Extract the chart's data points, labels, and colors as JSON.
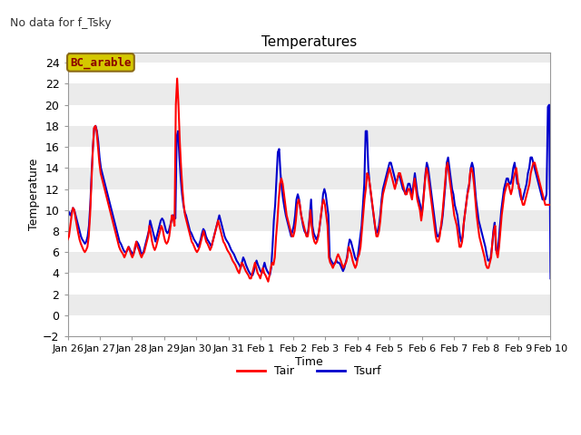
{
  "title": "Temperatures",
  "xlabel": "Time",
  "ylabel": "Temperature",
  "annotation": "No data for f_Tsky",
  "site_label": "BC_arable",
  "ylim": [
    -2,
    25
  ],
  "yticks": [
    -2,
    0,
    2,
    4,
    6,
    8,
    10,
    12,
    14,
    16,
    18,
    20,
    22,
    24
  ],
  "xtick_labels": [
    "Jan 26",
    "Jan 27",
    "Jan 28",
    "Jan 29",
    "Jan 30",
    "Jan 31",
    "Feb 1",
    "Feb 2",
    "Feb 3",
    "Feb 4",
    "Feb 5",
    "Feb 6",
    "Feb 7",
    "Feb 8",
    "Feb 9",
    "Feb 10"
  ],
  "plot_bg_light": "#ebebeb",
  "plot_bg_dark": "#ffffff",
  "tair_color": "#ff0000",
  "tsurf_color": "#0000cc",
  "tair": [
    7.2,
    7.5,
    8.5,
    9.5,
    10.2,
    10.0,
    9.2,
    8.5,
    7.8,
    7.2,
    6.8,
    6.5,
    6.2,
    6.0,
    6.2,
    6.5,
    7.5,
    9.5,
    12.5,
    15.5,
    17.8,
    18.0,
    17.5,
    16.0,
    14.5,
    13.5,
    13.0,
    12.5,
    12.0,
    11.5,
    11.0,
    10.5,
    10.0,
    9.5,
    9.0,
    8.5,
    8.0,
    7.5,
    7.0,
    6.5,
    6.2,
    6.0,
    5.8,
    5.5,
    5.8,
    6.2,
    6.5,
    6.2,
    5.8,
    5.5,
    5.8,
    6.5,
    7.0,
    6.5,
    6.2,
    5.8,
    5.5,
    5.8,
    6.0,
    6.5,
    7.0,
    7.5,
    8.5,
    7.8,
    7.0,
    6.5,
    6.2,
    6.5,
    7.0,
    7.5,
    8.0,
    8.5,
    8.2,
    7.5,
    7.0,
    6.8,
    7.0,
    7.5,
    8.5,
    9.5,
    9.2,
    8.5,
    20.0,
    22.5,
    20.0,
    16.5,
    14.0,
    12.0,
    10.5,
    9.5,
    9.0,
    8.5,
    8.0,
    7.5,
    7.0,
    6.8,
    6.5,
    6.2,
    6.0,
    6.2,
    6.5,
    7.0,
    7.5,
    8.0,
    7.5,
    7.0,
    6.8,
    6.5,
    6.2,
    6.5,
    7.0,
    7.5,
    8.0,
    8.5,
    9.0,
    8.5,
    8.0,
    7.5,
    7.0,
    6.8,
    6.5,
    6.2,
    6.0,
    5.8,
    5.5,
    5.2,
    5.0,
    4.8,
    4.5,
    4.2,
    4.0,
    4.5,
    5.0,
    4.8,
    4.5,
    4.2,
    4.0,
    3.8,
    3.5,
    3.5,
    4.0,
    4.5,
    5.0,
    4.5,
    4.0,
    3.8,
    3.5,
    4.0,
    4.5,
    4.0,
    3.8,
    3.5,
    3.2,
    3.8,
    4.5,
    5.0,
    4.8,
    5.5,
    7.5,
    9.0,
    11.0,
    12.5,
    13.0,
    12.5,
    11.5,
    10.5,
    9.5,
    9.0,
    8.5,
    8.0,
    7.5,
    7.5,
    8.0,
    9.0,
    10.5,
    11.0,
    10.5,
    9.5,
    9.0,
    8.5,
    8.0,
    7.5,
    7.5,
    8.5,
    10.0,
    8.5,
    7.5,
    7.0,
    6.8,
    7.0,
    7.5,
    8.5,
    9.5,
    10.5,
    11.0,
    10.5,
    9.5,
    8.5,
    5.5,
    5.0,
    4.8,
    4.5,
    4.8,
    5.0,
    5.5,
    5.8,
    5.5,
    5.2,
    4.8,
    4.5,
    4.8,
    5.0,
    5.5,
    6.5,
    6.2,
    5.8,
    5.2,
    4.8,
    4.5,
    4.8,
    5.5,
    5.8,
    6.5,
    8.0,
    9.5,
    11.0,
    12.0,
    13.5,
    13.2,
    12.5,
    11.5,
    10.5,
    9.5,
    8.5,
    7.5,
    7.5,
    8.0,
    9.0,
    10.5,
    11.5,
    12.0,
    12.5,
    13.0,
    13.5,
    14.0,
    13.5,
    13.0,
    12.5,
    12.0,
    12.5,
    13.0,
    13.5,
    13.5,
    13.0,
    12.5,
    12.0,
    11.5,
    11.5,
    12.0,
    12.0,
    11.5,
    11.0,
    12.0,
    13.0,
    12.0,
    11.0,
    10.5,
    10.0,
    9.0,
    10.0,
    11.5,
    13.0,
    14.0,
    13.5,
    12.5,
    11.5,
    10.5,
    9.5,
    8.5,
    7.5,
    7.0,
    7.0,
    7.5,
    8.5,
    9.5,
    11.0,
    12.5,
    14.0,
    14.5,
    13.5,
    12.5,
    11.5,
    10.5,
    9.5,
    9.0,
    8.5,
    7.5,
    6.5,
    6.5,
    7.0,
    8.5,
    9.5,
    10.5,
    11.5,
    12.0,
    13.5,
    14.0,
    13.5,
    12.5,
    11.0,
    9.5,
    8.5,
    7.5,
    7.0,
    6.5,
    6.0,
    5.5,
    4.8,
    4.5,
    4.5,
    5.0,
    5.5,
    7.0,
    8.0,
    8.5,
    6.0,
    5.5,
    6.5,
    8.0,
    9.5,
    10.5,
    11.5,
    12.0,
    12.5,
    12.5,
    12.0,
    11.5,
    12.0,
    13.0,
    13.5,
    14.0,
    13.0,
    12.0,
    12.0,
    11.0,
    10.5,
    10.5,
    11.0,
    11.5,
    12.0,
    12.5,
    13.5,
    14.0,
    14.5,
    14.5,
    14.0,
    13.5,
    13.0,
    12.5,
    12.0,
    11.5,
    11.0,
    10.5,
    10.5,
    10.5,
    10.5,
    10.5
  ],
  "tsurf": [
    10.0,
    9.8,
    9.5,
    9.8,
    10.2,
    10.0,
    9.5,
    9.0,
    8.5,
    8.0,
    7.5,
    7.2,
    7.0,
    6.8,
    7.0,
    7.5,
    8.5,
    10.5,
    13.5,
    16.0,
    17.8,
    18.0,
    17.5,
    16.5,
    15.0,
    14.0,
    13.5,
    13.0,
    12.5,
    12.0,
    11.5,
    11.0,
    10.5,
    10.0,
    9.5,
    9.0,
    8.5,
    8.0,
    7.5,
    7.0,
    6.8,
    6.5,
    6.2,
    6.0,
    6.0,
    6.2,
    6.5,
    6.2,
    6.0,
    5.8,
    6.0,
    6.5,
    7.0,
    6.8,
    6.5,
    6.0,
    5.8,
    6.0,
    6.5,
    7.0,
    7.5,
    8.0,
    9.0,
    8.5,
    8.0,
    7.5,
    7.0,
    7.5,
    8.0,
    8.5,
    9.0,
    9.2,
    9.0,
    8.5,
    8.0,
    7.8,
    8.0,
    8.5,
    9.0,
    9.5,
    9.5,
    9.2,
    17.0,
    17.5,
    15.0,
    13.0,
    11.5,
    10.5,
    9.8,
    9.5,
    9.0,
    8.5,
    8.0,
    7.8,
    7.5,
    7.2,
    7.0,
    6.8,
    6.5,
    6.8,
    7.2,
    7.8,
    8.2,
    8.0,
    7.5,
    7.2,
    7.0,
    6.8,
    6.5,
    7.0,
    7.5,
    8.0,
    8.5,
    9.0,
    9.5,
    9.0,
    8.5,
    8.0,
    7.5,
    7.2,
    7.0,
    6.8,
    6.5,
    6.2,
    6.0,
    5.8,
    5.5,
    5.2,
    5.0,
    4.8,
    4.5,
    5.0,
    5.5,
    5.2,
    4.8,
    4.5,
    4.2,
    4.0,
    3.8,
    3.8,
    4.2,
    4.8,
    5.2,
    4.8,
    4.5,
    4.2,
    4.0,
    4.5,
    5.0,
    4.5,
    4.2,
    4.0,
    3.8,
    4.5,
    6.5,
    9.0,
    10.5,
    13.0,
    15.5,
    15.8,
    13.5,
    12.0,
    11.0,
    10.2,
    9.5,
    9.0,
    8.5,
    8.0,
    7.5,
    8.0,
    8.5,
    9.5,
    11.0,
    11.5,
    11.0,
    10.0,
    9.2,
    8.5,
    8.0,
    7.8,
    7.5,
    8.2,
    9.5,
    11.0,
    8.5,
    7.8,
    7.5,
    7.2,
    7.5,
    8.0,
    9.0,
    10.0,
    11.5,
    12.0,
    11.5,
    10.5,
    9.5,
    5.5,
    5.2,
    5.0,
    4.8,
    5.0,
    5.2,
    5.0,
    5.0,
    4.8,
    4.5,
    4.2,
    4.5,
    5.0,
    5.5,
    6.5,
    7.2,
    7.0,
    6.5,
    6.0,
    5.5,
    5.2,
    5.5,
    6.5,
    7.5,
    8.5,
    10.5,
    12.5,
    17.5,
    17.5,
    14.0,
    12.5,
    11.5,
    10.5,
    9.5,
    8.5,
    7.8,
    8.0,
    8.5,
    9.5,
    11.0,
    12.0,
    12.5,
    13.0,
    13.5,
    14.0,
    14.5,
    14.5,
    14.0,
    13.5,
    13.0,
    12.5,
    13.0,
    13.5,
    13.0,
    12.5,
    12.0,
    11.8,
    11.5,
    12.0,
    12.5,
    12.5,
    12.0,
    11.5,
    12.5,
    13.5,
    12.5,
    11.5,
    11.0,
    10.5,
    9.5,
    10.5,
    12.0,
    13.5,
    14.5,
    14.0,
    13.0,
    12.0,
    11.0,
    10.0,
    9.0,
    8.0,
    7.5,
    7.5,
    8.0,
    8.5,
    9.5,
    11.0,
    12.5,
    14.5,
    15.0,
    14.0,
    13.0,
    12.0,
    11.5,
    10.5,
    10.0,
    9.5,
    8.5,
    7.5,
    7.0,
    7.5,
    9.0,
    10.0,
    11.0,
    12.0,
    12.5,
    14.0,
    14.5,
    14.0,
    12.5,
    11.0,
    10.0,
    9.0,
    8.5,
    8.0,
    7.5,
    7.0,
    6.5,
    5.8,
    5.2,
    5.2,
    5.5,
    6.5,
    8.0,
    8.8,
    6.2,
    6.0,
    7.0,
    8.5,
    10.0,
    11.0,
    12.0,
    12.5,
    13.0,
    13.0,
    12.5,
    12.5,
    13.0,
    14.0,
    14.5,
    13.5,
    12.5,
    12.5,
    11.5,
    11.0,
    11.0,
    11.5,
    12.0,
    12.5,
    13.5,
    14.0,
    15.0,
    15.0,
    14.5,
    14.0,
    13.5,
    13.0,
    12.5,
    12.0,
    11.5,
    11.0,
    11.0,
    11.0,
    11.5,
    19.8,
    20.0,
    3.5
  ]
}
